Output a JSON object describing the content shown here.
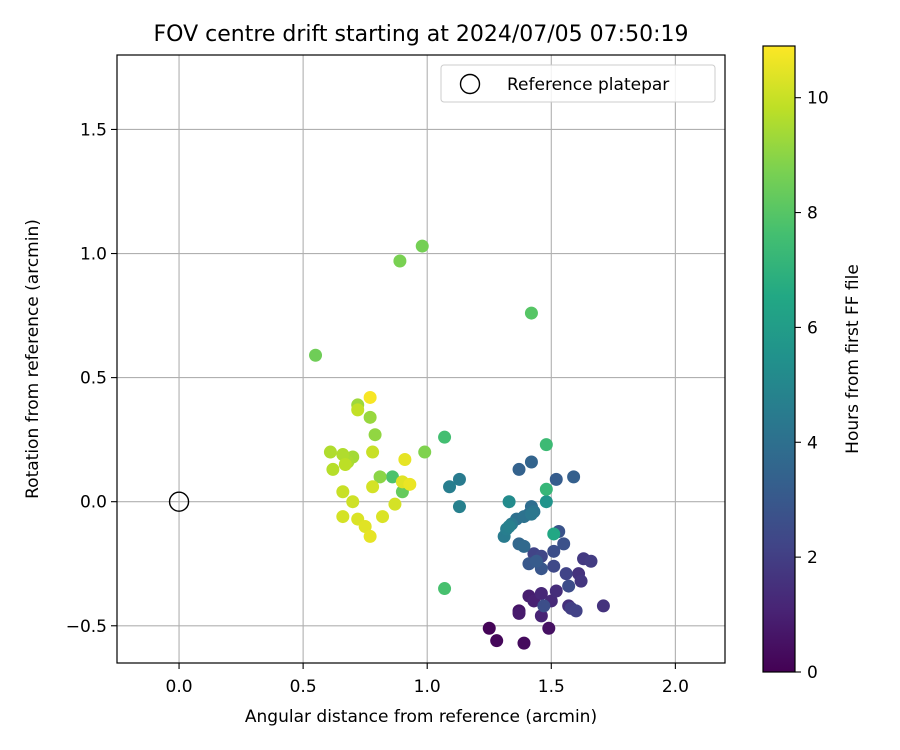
{
  "chart_data": {
    "type": "scatter",
    "title": "FOV centre drift starting at 2024/07/05 07:50:19",
    "xlabel": "Angular distance from reference (arcmin)",
    "ylabel": "Rotation from reference (arcmin)",
    "xlim": [
      -0.25,
      2.2
    ],
    "ylim": [
      -0.65,
      1.8
    ],
    "x_ticks": [
      "0.0",
      "0.5",
      "1.0",
      "1.5",
      "2.0"
    ],
    "y_ticks": [
      "−0.5",
      "0.0",
      "0.5",
      "1.0",
      "1.5"
    ],
    "x_tick_values": [
      0,
      0.5,
      1.0,
      1.5,
      2.0
    ],
    "y_tick_values": [
      -0.5,
      0,
      0.5,
      1.0,
      1.5
    ],
    "grid": true,
    "legend": {
      "placement": "top-right",
      "entries": [
        "Reference platepar"
      ]
    },
    "reference_point": {
      "x": 0.0,
      "y": 0.0
    },
    "colorbar": {
      "label": "Hours from first FF file",
      "colormap": "viridis",
      "range": [
        0,
        10.9
      ],
      "ticks": [
        "0",
        "2",
        "4",
        "6",
        "8",
        "10"
      ],
      "tick_values": [
        0,
        2,
        4,
        6,
        8,
        10
      ]
    },
    "points": [
      {
        "x": 1.25,
        "y": -0.51,
        "c": 0.1
      },
      {
        "x": 1.28,
        "y": -0.56,
        "c": 0.2
      },
      {
        "x": 1.39,
        "y": -0.57,
        "c": 0.3
      },
      {
        "x": 1.49,
        "y": -0.51,
        "c": 0.5
      },
      {
        "x": 1.37,
        "y": -0.44,
        "c": 0.6
      },
      {
        "x": 1.37,
        "y": -0.45,
        "c": 0.8
      },
      {
        "x": 1.41,
        "y": -0.38,
        "c": 0.9
      },
      {
        "x": 1.43,
        "y": -0.4,
        "c": 1.0
      },
      {
        "x": 1.46,
        "y": -0.46,
        "c": 1.1
      },
      {
        "x": 1.46,
        "y": -0.37,
        "c": 1.2
      },
      {
        "x": 1.5,
        "y": -0.4,
        "c": 1.3
      },
      {
        "x": 1.52,
        "y": -0.36,
        "c": 1.4
      },
      {
        "x": 1.57,
        "y": -0.42,
        "c": 1.5
      },
      {
        "x": 1.61,
        "y": -0.29,
        "c": 1.6
      },
      {
        "x": 1.62,
        "y": -0.32,
        "c": 1.7
      },
      {
        "x": 1.63,
        "y": -0.23,
        "c": 1.8
      },
      {
        "x": 1.66,
        "y": -0.24,
        "c": 1.9
      },
      {
        "x": 1.71,
        "y": -0.42,
        "c": 1.6
      },
      {
        "x": 1.58,
        "y": -0.43,
        "c": 2.0
      },
      {
        "x": 1.6,
        "y": -0.44,
        "c": 2.1
      },
      {
        "x": 1.43,
        "y": -0.21,
        "c": 2.2
      },
      {
        "x": 1.46,
        "y": -0.22,
        "c": 2.3
      },
      {
        "x": 1.51,
        "y": -0.26,
        "c": 2.4
      },
      {
        "x": 1.56,
        "y": -0.29,
        "c": 2.2
      },
      {
        "x": 1.57,
        "y": -0.34,
        "c": 2.5
      },
      {
        "x": 1.51,
        "y": -0.2,
        "c": 2.6
      },
      {
        "x": 1.55,
        "y": -0.17,
        "c": 2.7
      },
      {
        "x": 1.53,
        "y": -0.12,
        "c": 2.8
      },
      {
        "x": 1.46,
        "y": -0.27,
        "c": 2.9
      },
      {
        "x": 1.41,
        "y": -0.25,
        "c": 3.0
      },
      {
        "x": 1.44,
        "y": -0.24,
        "c": 3.1
      },
      {
        "x": 1.47,
        "y": -0.42,
        "c": 2.6
      },
      {
        "x": 1.52,
        "y": 0.09,
        "c": 3.2
      },
      {
        "x": 1.59,
        "y": 0.1,
        "c": 3.3
      },
      {
        "x": 1.37,
        "y": 0.13,
        "c": 3.4
      },
      {
        "x": 1.42,
        "y": 0.16,
        "c": 3.5
      },
      {
        "x": 1.37,
        "y": -0.17,
        "c": 3.6
      },
      {
        "x": 1.39,
        "y": -0.18,
        "c": 3.7
      },
      {
        "x": 1.41,
        "y": -0.05,
        "c": 3.8
      },
      {
        "x": 1.42,
        "y": -0.02,
        "c": 3.9
      },
      {
        "x": 1.36,
        "y": -0.07,
        "c": 4.0
      },
      {
        "x": 1.39,
        "y": -0.06,
        "c": 4.1
      },
      {
        "x": 1.43,
        "y": -0.04,
        "c": 4.2
      },
      {
        "x": 1.42,
        "y": -0.05,
        "c": 4.3
      },
      {
        "x": 1.34,
        "y": -0.09,
        "c": 4.4
      },
      {
        "x": 1.31,
        "y": -0.14,
        "c": 4.5
      },
      {
        "x": 1.32,
        "y": -0.11,
        "c": 4.6
      },
      {
        "x": 1.33,
        "y": -0.1,
        "c": 4.7
      },
      {
        "x": 1.13,
        "y": 0.09,
        "c": 4.5
      },
      {
        "x": 1.09,
        "y": 0.06,
        "c": 4.6
      },
      {
        "x": 1.13,
        "y": -0.02,
        "c": 4.7
      },
      {
        "x": 1.33,
        "y": 0.0,
        "c": 5.2
      },
      {
        "x": 1.48,
        "y": 0.0,
        "c": 5.6
      },
      {
        "x": 1.51,
        "y": -0.13,
        "c": 6.5
      },
      {
        "x": 1.48,
        "y": 0.05,
        "c": 7.2
      },
      {
        "x": 1.48,
        "y": 0.23,
        "c": 7.4
      },
      {
        "x": 1.07,
        "y": 0.26,
        "c": 7.6
      },
      {
        "x": 1.07,
        "y": -0.35,
        "c": 7.7
      },
      {
        "x": 0.86,
        "y": 0.1,
        "c": 7.8
      },
      {
        "x": 1.42,
        "y": 0.76,
        "c": 8.0
      },
      {
        "x": 0.9,
        "y": 0.04,
        "c": 8.3
      },
      {
        "x": 0.55,
        "y": 0.59,
        "c": 8.5
      },
      {
        "x": 0.98,
        "y": 1.03,
        "c": 8.6
      },
      {
        "x": 0.89,
        "y": 0.97,
        "c": 8.7
      },
      {
        "x": 0.99,
        "y": 0.2,
        "c": 8.8
      },
      {
        "x": 0.81,
        "y": 0.1,
        "c": 9.0
      },
      {
        "x": 0.79,
        "y": 0.27,
        "c": 9.1
      },
      {
        "x": 0.77,
        "y": 0.34,
        "c": 9.2
      },
      {
        "x": 0.72,
        "y": 0.39,
        "c": 9.3
      },
      {
        "x": 0.7,
        "y": 0.18,
        "c": 9.4
      },
      {
        "x": 0.68,
        "y": 0.16,
        "c": 9.5
      },
      {
        "x": 0.66,
        "y": 0.19,
        "c": 9.6
      },
      {
        "x": 0.61,
        "y": 0.2,
        "c": 9.6
      },
      {
        "x": 0.62,
        "y": 0.13,
        "c": 9.7
      },
      {
        "x": 0.67,
        "y": 0.15,
        "c": 9.8
      },
      {
        "x": 0.72,
        "y": 0.37,
        "c": 9.9
      },
      {
        "x": 0.78,
        "y": 0.2,
        "c": 10.0
      },
      {
        "x": 0.66,
        "y": 0.04,
        "c": 10.0
      },
      {
        "x": 0.7,
        "y": 0.0,
        "c": 10.1
      },
      {
        "x": 0.78,
        "y": 0.06,
        "c": 10.2
      },
      {
        "x": 0.66,
        "y": -0.06,
        "c": 10.2
      },
      {
        "x": 0.72,
        "y": -0.07,
        "c": 10.3
      },
      {
        "x": 0.75,
        "y": -0.1,
        "c": 10.4
      },
      {
        "x": 0.77,
        "y": -0.14,
        "c": 10.5
      },
      {
        "x": 0.82,
        "y": -0.06,
        "c": 10.3
      },
      {
        "x": 0.87,
        "y": -0.01,
        "c": 10.2
      },
      {
        "x": 0.9,
        "y": 0.08,
        "c": 10.4
      },
      {
        "x": 0.91,
        "y": 0.17,
        "c": 10.5
      },
      {
        "x": 0.93,
        "y": 0.07,
        "c": 10.6
      },
      {
        "x": 0.77,
        "y": 0.42,
        "c": 10.8
      }
    ]
  }
}
